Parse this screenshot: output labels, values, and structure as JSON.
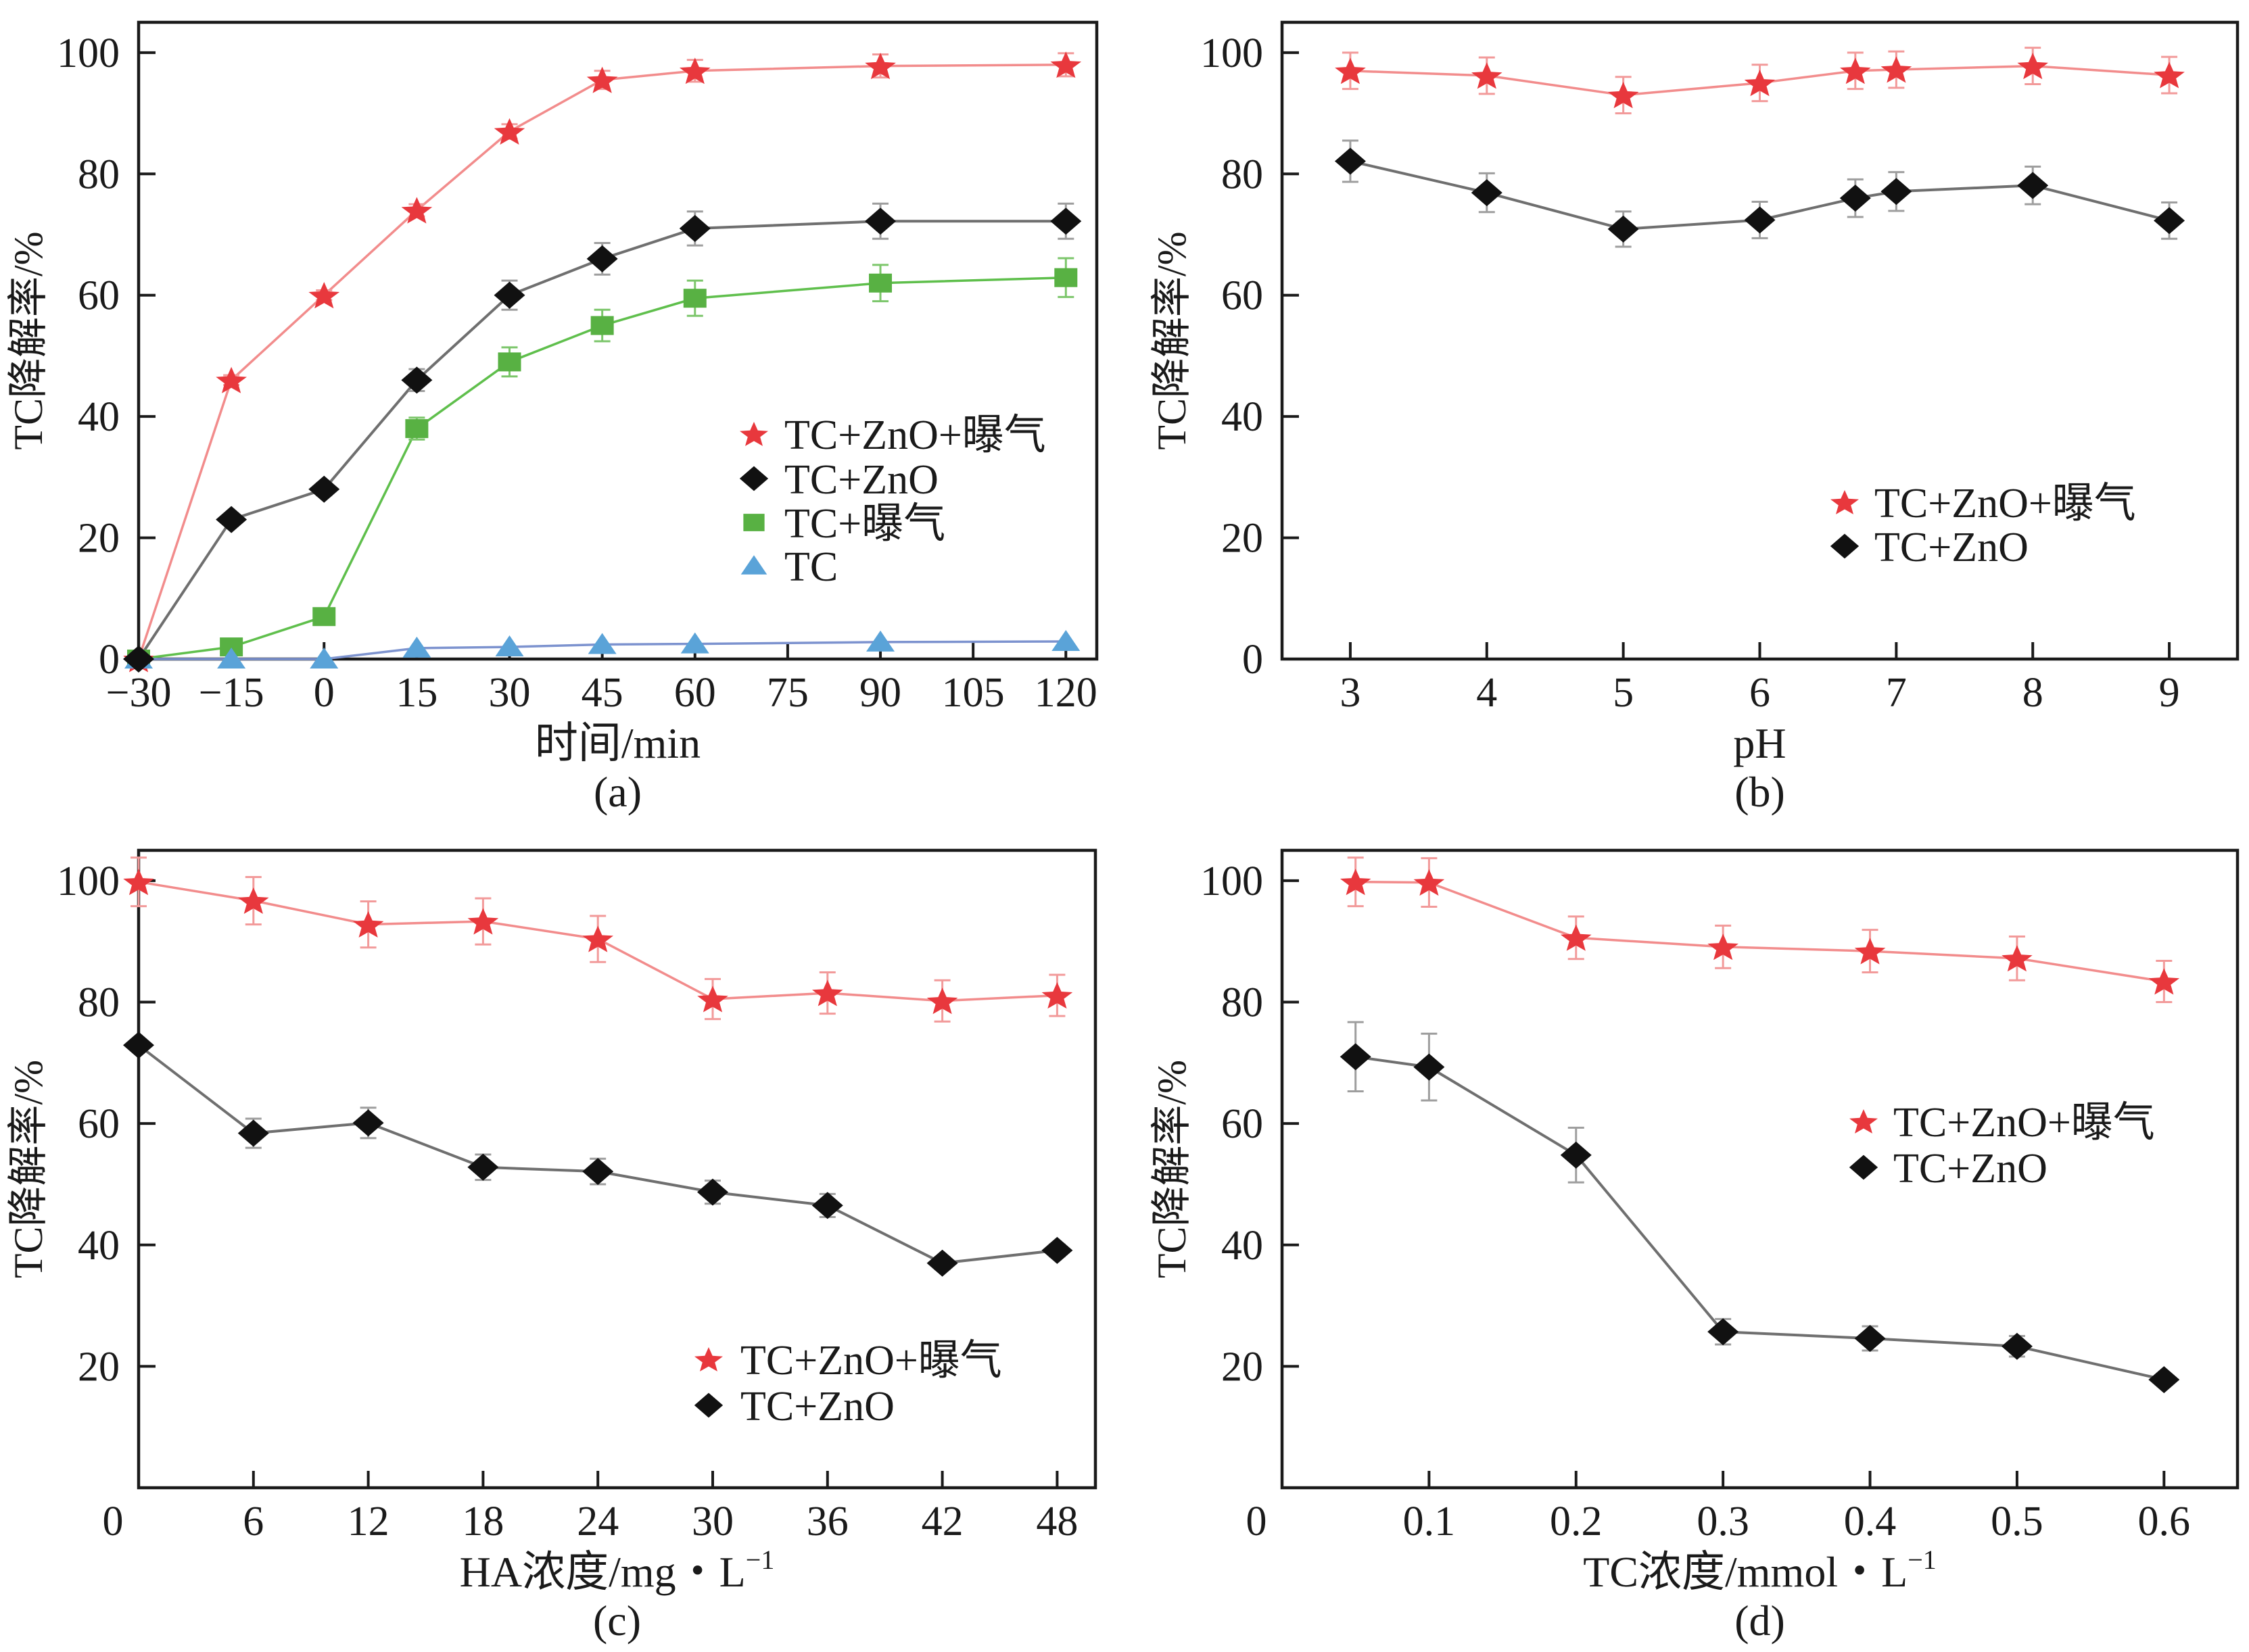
{
  "chart_data": [
    {
      "type": "line",
      "panel_label": "(a)",
      "title": "",
      "xlabel": "时间/min",
      "xlabel_sup": "",
      "ylabel": "TC降解率/%",
      "xlim": [
        -30,
        125
      ],
      "ylim": [
        0,
        105
      ],
      "xticks": [
        -30,
        -15,
        0,
        15,
        30,
        45,
        60,
        75,
        90,
        105,
        120
      ],
      "xtick_labels": [
        "−30",
        "−15",
        "0",
        "15",
        "30",
        "45",
        "60",
        "75",
        "90",
        "105",
        "120"
      ],
      "yticks": [
        0,
        20,
        40,
        60,
        80,
        100
      ],
      "ytick_labels": [
        "0",
        "20",
        "40",
        "60",
        "80",
        "100"
      ],
      "grid": false,
      "legend": {
        "placement": "center-right"
      },
      "series": [
        {
          "name": "TC+ZnO+曝气",
          "marker": "star",
          "color": "#e8383d",
          "line_color": "#f28c8c",
          "errorbar_color": "#f29a9a",
          "x": [
            -30,
            -15,
            0,
            15,
            30,
            45,
            60,
            90,
            120
          ],
          "y": [
            0,
            46,
            60,
            74,
            87,
            95.5,
            97,
            97.8,
            98
          ],
          "yerr": [
            0,
            0.8,
            0.8,
            1.0,
            1.2,
            1.5,
            1.8,
            1.9,
            1.9
          ]
        },
        {
          "name": "TC+ZnO",
          "marker": "diamond",
          "color": "#111111",
          "line_color": "#6f6f6f",
          "errorbar_color": "#9e9e9e",
          "x": [
            -30,
            -15,
            0,
            15,
            30,
            45,
            60,
            90,
            120
          ],
          "y": [
            0,
            23,
            28,
            46,
            60,
            66,
            71,
            72.2,
            72.2
          ],
          "yerr": [
            0,
            0.8,
            1.0,
            1.8,
            2.4,
            2.6,
            2.8,
            2.9,
            2.9
          ]
        },
        {
          "name": "TC+曝气",
          "marker": "square",
          "color": "#58b143",
          "line_color": "#5fbf4c",
          "errorbar_color": "#7cc66b",
          "x": [
            -30,
            -15,
            0,
            15,
            30,
            45,
            60,
            90,
            120
          ],
          "y": [
            0,
            2,
            7,
            38,
            49,
            55,
            59.5,
            62,
            62.9
          ],
          "yerr": [
            0,
            0.5,
            0.8,
            1.8,
            2.4,
            2.6,
            2.9,
            3.0,
            3.2
          ]
        },
        {
          "name": "TC",
          "marker": "triangle",
          "color": "#5aa3d8",
          "line_color": "#7d93cf",
          "errorbar_color": "#8fb6dd",
          "x": [
            -30,
            -15,
            0,
            15,
            30,
            45,
            60,
            90,
            120
          ],
          "y": [
            0,
            0,
            0,
            1.8,
            2.0,
            2.4,
            2.5,
            2.8,
            2.9
          ],
          "yerr": [
            0,
            0,
            0,
            0,
            0,
            0,
            0,
            0,
            0
          ]
        }
      ]
    },
    {
      "type": "line",
      "panel_label": "(b)",
      "title": "",
      "xlabel": "pH",
      "xlabel_sup": "",
      "ylabel": "TC降解率/%",
      "xlim": [
        2.5,
        9.5
      ],
      "ylim": [
        0,
        105
      ],
      "xticks": [
        3,
        4,
        5,
        6,
        7,
        8,
        9
      ],
      "xtick_labels": [
        "3",
        "4",
        "5",
        "6",
        "7",
        "8",
        "9"
      ],
      "yticks": [
        0,
        20,
        40,
        60,
        80,
        100
      ],
      "ytick_labels": [
        "0",
        "20",
        "40",
        "60",
        "80",
        "100"
      ],
      "grid": false,
      "legend": {
        "placement": "lower-right"
      },
      "series": [
        {
          "name": "TC+ZnO+曝气",
          "marker": "star",
          "color": "#e8383d",
          "line_color": "#f28c8c",
          "errorbar_color": "#f29a9a",
          "x": [
            3,
            4,
            5,
            6,
            6.7,
            7,
            8,
            9
          ],
          "y": [
            97.0,
            96.2,
            93.0,
            95.0,
            97.0,
            97.2,
            97.8,
            96.3
          ],
          "yerr": [
            3.0,
            3.0,
            3.0,
            3.0,
            3.0,
            3.0,
            3.0,
            3.0
          ]
        },
        {
          "name": "TC+ZnO",
          "marker": "diamond",
          "color": "#111111",
          "line_color": "#6f6f6f",
          "errorbar_color": "#9e9e9e",
          "x": [
            3,
            4,
            5,
            6,
            6.7,
            7,
            8,
            9
          ],
          "y": [
            82.1,
            76.9,
            70.9,
            72.4,
            76.0,
            77.1,
            78.1,
            72.3
          ],
          "yerr": [
            3.4,
            3.2,
            2.9,
            3.0,
            3.1,
            3.2,
            3.1,
            3.0
          ]
        }
      ]
    },
    {
      "type": "line",
      "panel_label": "(c)",
      "title": "",
      "xlabel": "HA浓度/mg・L",
      "xlabel_sup": "−1",
      "ylabel": "TC降解率/%",
      "xlim": [
        0,
        50
      ],
      "ylim": [
        0,
        105
      ],
      "xticks": [
        0,
        6,
        12,
        18,
        24,
        30,
        36,
        42,
        48
      ],
      "xtick_labels": [
        "0",
        "6",
        "12",
        "18",
        "24",
        "30",
        "36",
        "42",
        "48"
      ],
      "yticks": [
        20,
        40,
        60,
        80,
        100
      ],
      "ytick_labels": [
        "20",
        "40",
        "60",
        "80",
        "100"
      ],
      "grid": false,
      "legend": {
        "placement": "lower-right"
      },
      "series": [
        {
          "name": "TC+ZnO+曝气",
          "marker": "star",
          "color": "#e8383d",
          "line_color": "#f28c8c",
          "errorbar_color": "#f29a9a",
          "x": [
            0,
            6,
            12,
            18,
            24,
            30,
            36,
            42,
            48
          ],
          "y": [
            99.8,
            96.7,
            92.8,
            93.3,
            90.4,
            80.5,
            81.5,
            80.2,
            81.1
          ],
          "yerr": [
            4.0,
            3.9,
            3.8,
            3.8,
            3.8,
            3.3,
            3.4,
            3.4,
            3.4
          ]
        },
        {
          "name": "TC+ZnO",
          "marker": "diamond",
          "color": "#111111",
          "line_color": "#6f6f6f",
          "errorbar_color": "#9e9e9e",
          "x": [
            0,
            6,
            12,
            18,
            24,
            30,
            36,
            42,
            48
          ],
          "y": [
            72.9,
            58.4,
            60.1,
            52.8,
            52.1,
            48.7,
            46.5,
            37.0,
            39.1
          ],
          "yerr": [
            0.5,
            2.4,
            2.5,
            2.1,
            2.1,
            1.9,
            1.9,
            1.0,
            1.0
          ]
        }
      ]
    },
    {
      "type": "line",
      "panel_label": "(d)",
      "title": "",
      "xlabel": "TC浓度/mmol・L",
      "xlabel_sup": "−1",
      "ylabel": "TC降解率/%",
      "xlim": [
        0,
        0.65
      ],
      "ylim": [
        0,
        105
      ],
      "xticks": [
        0,
        0.1,
        0.2,
        0.3,
        0.4,
        0.5,
        0.6
      ],
      "xtick_labels": [
        "0",
        "0.1",
        "0.2",
        "0.3",
        "0.4",
        "0.5",
        "0.6"
      ],
      "yticks": [
        20,
        40,
        60,
        80,
        100
      ],
      "ytick_labels": [
        "20",
        "40",
        "60",
        "80",
        "100"
      ],
      "grid": false,
      "legend": {
        "placement": "center-right"
      },
      "series": [
        {
          "name": "TC+ZnO+曝气",
          "marker": "star",
          "color": "#e8383d",
          "line_color": "#f28c8c",
          "errorbar_color": "#f29a9a",
          "x": [
            0.05,
            0.1,
            0.2,
            0.3,
            0.4,
            0.5,
            0.6
          ],
          "y": [
            99.8,
            99.7,
            90.6,
            89.1,
            88.4,
            87.2,
            83.4
          ],
          "yerr": [
            4.0,
            4.0,
            3.5,
            3.5,
            3.5,
            3.6,
            3.4
          ]
        },
        {
          "name": "TC+ZnO",
          "marker": "diamond",
          "color": "#111111",
          "line_color": "#6f6f6f",
          "errorbar_color": "#9e9e9e",
          "x": [
            0.05,
            0.1,
            0.2,
            0.3,
            0.4,
            0.5,
            0.6
          ],
          "y": [
            71.0,
            69.3,
            54.8,
            25.7,
            24.6,
            23.3,
            17.8
          ],
          "yerr": [
            5.7,
            5.5,
            4.5,
            2.1,
            2.0,
            1.7,
            0.8
          ]
        }
      ]
    }
  ]
}
